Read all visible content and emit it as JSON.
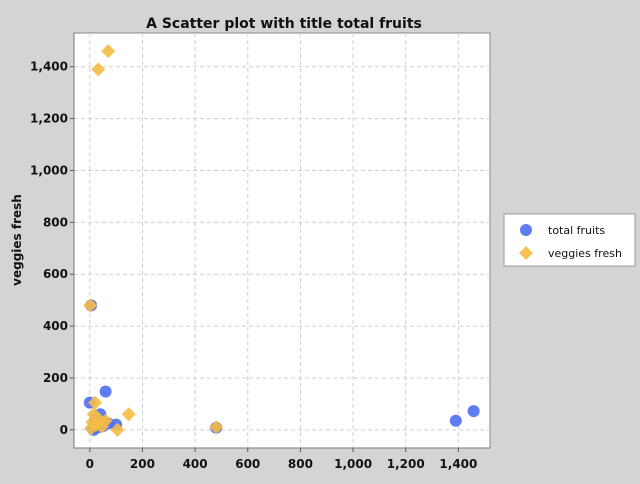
{
  "chart_data": {
    "type": "scatter",
    "title": "A Scatter plot with title total fruits",
    "xlabel": "",
    "ylabel": "veggies fresh",
    "xlim": [
      -60,
      1520
    ],
    "ylim": [
      -70,
      1530
    ],
    "x_ticks": [
      0,
      200,
      400,
      600,
      800,
      1000,
      1200,
      1400
    ],
    "y_ticks": [
      0,
      200,
      400,
      600,
      800,
      1000,
      1200,
      1400
    ],
    "x_tick_labels": [
      "0",
      "200",
      "400",
      "600",
      "800",
      "1,000",
      "1,200",
      "1,400"
    ],
    "y_tick_labels": [
      "0",
      "200",
      "400",
      "600",
      "800",
      "1,000",
      "1,200",
      "1,400"
    ],
    "grid": true,
    "legend_position": "right",
    "series": [
      {
        "name": "total fruits",
        "color": "#4f6ef0",
        "marker": "circle",
        "points": [
          [
            1458,
            72
          ],
          [
            1390,
            35
          ],
          [
            480,
            8
          ],
          [
            5,
            480
          ],
          [
            60,
            148
          ],
          [
            0,
            105
          ],
          [
            40,
            60
          ],
          [
            20,
            40
          ],
          [
            100,
            20
          ],
          [
            70,
            25
          ],
          [
            10,
            5
          ],
          [
            30,
            10
          ],
          [
            15,
            0
          ],
          [
            50,
            15
          ]
        ]
      },
      {
        "name": "veggies fresh",
        "color": "#f5bb45",
        "marker": "diamond",
        "points": [
          [
            70,
            1460
          ],
          [
            32,
            1390
          ],
          [
            2,
            480
          ],
          [
            480,
            10
          ],
          [
            148,
            60
          ],
          [
            105,
            0
          ],
          [
            20,
            105
          ],
          [
            15,
            60
          ],
          [
            60,
            35
          ],
          [
            35,
            40
          ],
          [
            5,
            5
          ],
          [
            25,
            20
          ],
          [
            10,
            30
          ],
          [
            45,
            12
          ]
        ]
      }
    ]
  }
}
